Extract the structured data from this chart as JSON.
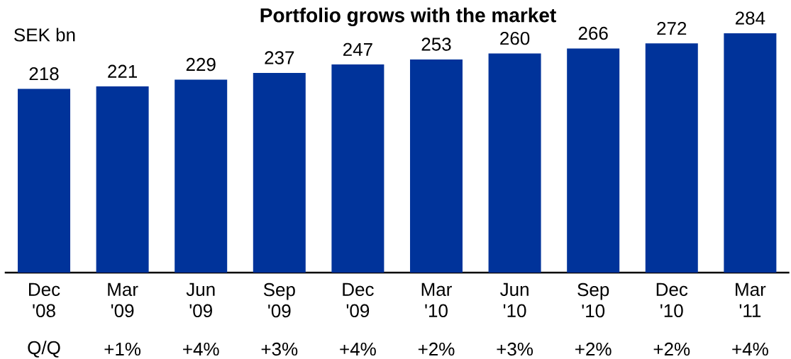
{
  "chart_data": {
    "type": "bar",
    "title": "Portfolio grows with the market",
    "ylabel": "SEK bn",
    "categories": [
      "Dec '08",
      "Mar '09",
      "Jun '09",
      "Sep '09",
      "Dec '09",
      "Mar '10",
      "Jun '10",
      "Sep '10",
      "Dec '10",
      "Mar '11"
    ],
    "values": [
      218,
      221,
      229,
      237,
      247,
      253,
      260,
      266,
      272,
      284
    ],
    "color": "#00339a",
    "data_labels": true,
    "annotations": [
      "Q/Q",
      "+1%",
      "+4%",
      "+3%",
      "+4%",
      "+2%",
      "+3%",
      "+2%",
      "+2%",
      "+4%"
    ]
  }
}
